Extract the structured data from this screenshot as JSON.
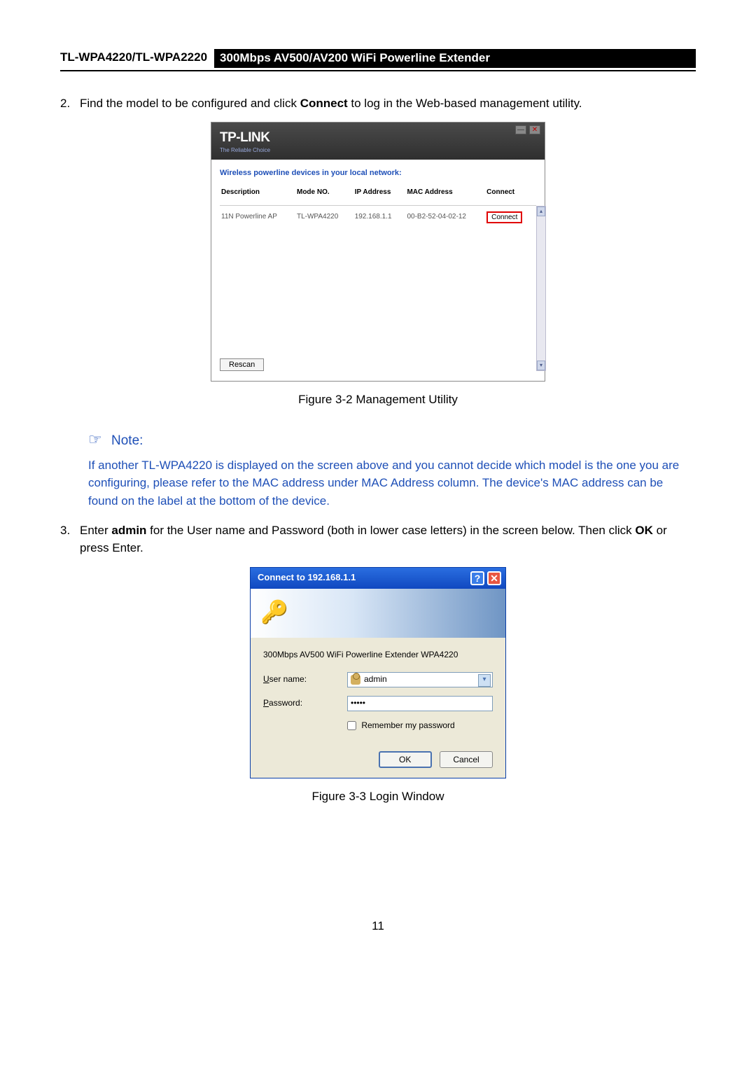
{
  "header": {
    "model": "TL-WPA4220/TL-WPA2220",
    "desc": "300Mbps AV500/AV200 WiFi Powerline Extender"
  },
  "step2": {
    "num": "2.",
    "prefix": "Find the model to be configured and click ",
    "bold1": "Connect",
    "suffix": " to log in the Web-based management utility."
  },
  "mgmt": {
    "brand": "TP-LINK",
    "tagline": "The Reliable Choice",
    "label": "Wireless powerline devices in your local network:",
    "columns": [
      "Description",
      "Mode NO.",
      "IP Address",
      "MAC Address",
      "Connect"
    ],
    "row": {
      "desc": "11N Powerline AP",
      "mode": "TL-WPA4220",
      "ip": "192.168.1.1",
      "mac": "00-B2-52-04-02-12",
      "btn": "Connect"
    },
    "rescan": "Rescan",
    "caption": "Figure 3-2 Management Utility"
  },
  "note": {
    "head": "Note:",
    "body": "If another TL-WPA4220 is displayed on the screen above and you cannot decide which model is the one you are configuring, please refer to the MAC address under MAC Address column. The device's MAC address can be found on the label at the bottom of the device."
  },
  "step3": {
    "num": "3.",
    "p1a": "Enter ",
    "p1b": "admin",
    "p1c": " for the User name and Password (both in lower case letters) in the screen below. Then click ",
    "p1d": "OK",
    "p1e": " or press Enter."
  },
  "login": {
    "title": "Connect to 192.168.1.1",
    "device": "300Mbps AV500 WiFi Powerline Extender WPA4220",
    "user_label": "User name:",
    "user_value": "admin",
    "pass_label": "Password:",
    "pass_value": "•••••",
    "remember": "Remember my password",
    "ok": "OK",
    "cancel": "Cancel",
    "caption": "Figure 3-3 Login Window"
  },
  "page": "11",
  "colors": {
    "note": "#1e4fb7",
    "titlebar_grad_top": "#2a6ee0",
    "titlebar_grad_bot": "#1048c0",
    "red_border": "#e00000"
  }
}
